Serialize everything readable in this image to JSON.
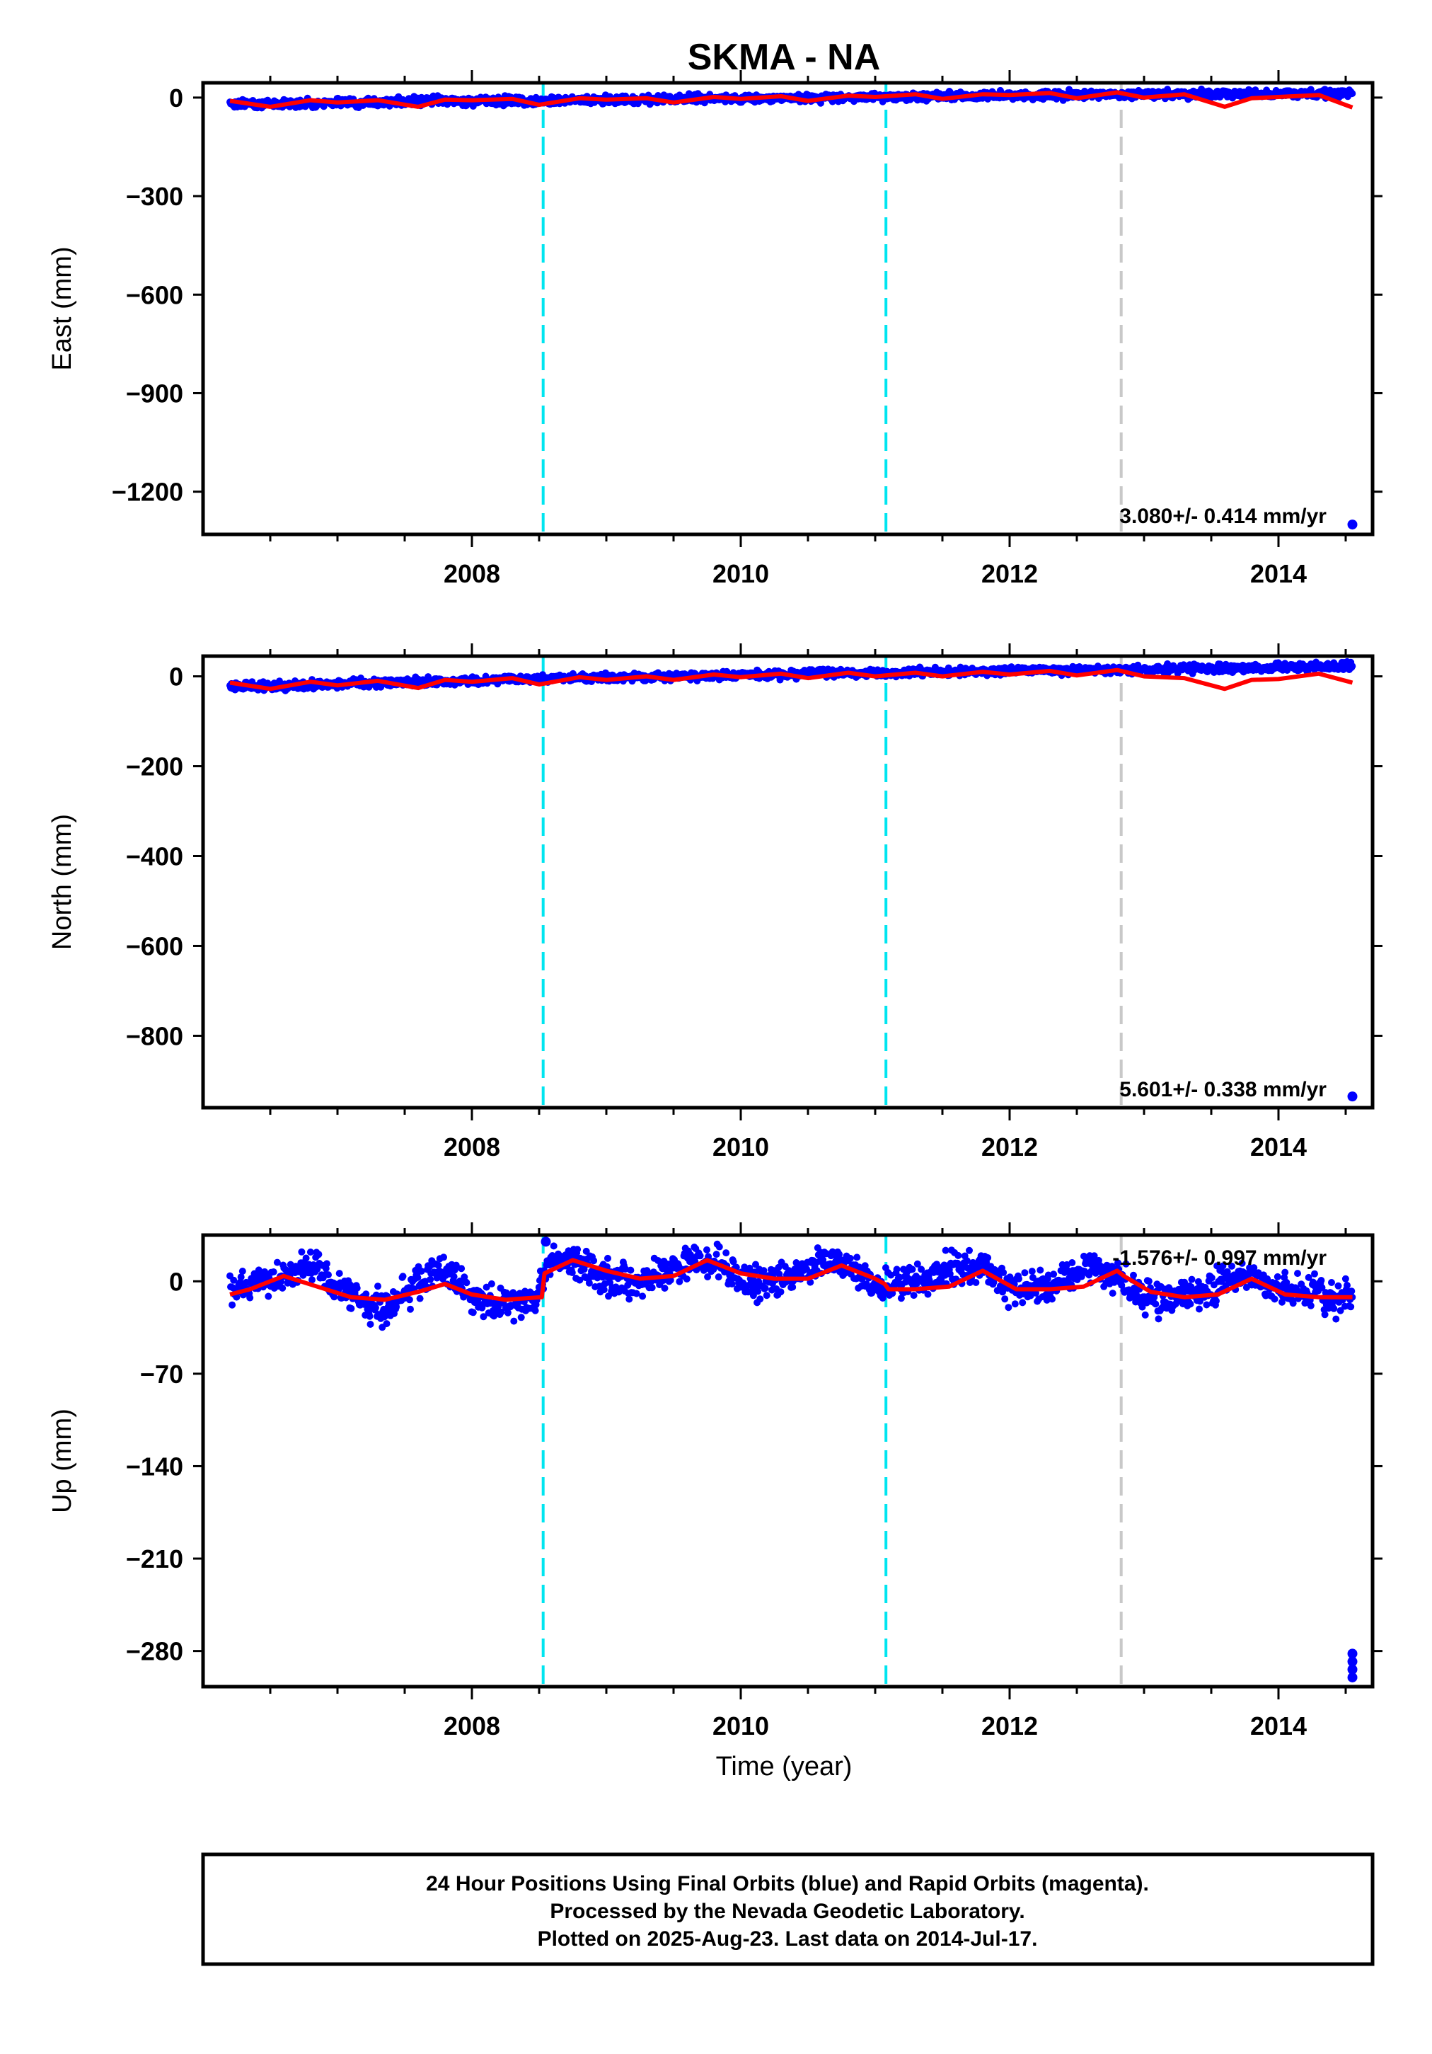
{
  "chart_data": {
    "type": "scatter",
    "title": "SKMA - NA",
    "xlabel": "Time (year)",
    "xlim": [
      2006.0,
      2014.7
    ],
    "x_ticks": [
      2008,
      2010,
      2012,
      2014
    ],
    "x_tick_labels": [
      "2008",
      "2010",
      "2012",
      "2014"
    ],
    "grid": false,
    "step_lines": [
      {
        "x": 2008.53,
        "color": "#00e5f0",
        "style": "dashed"
      },
      {
        "x": 2011.08,
        "color": "#00e5f0",
        "style": "dashed"
      },
      {
        "x": 2012.83,
        "color": "#c8c8c8",
        "style": "dashed"
      }
    ],
    "colors": {
      "observations": "#0000ff",
      "model": "#ff0000"
    },
    "panels": [
      {
        "name": "east",
        "ylabel": "East (mm)",
        "ylim": [
          -1330,
          45
        ],
        "y_ticks": [
          0,
          -300,
          -600,
          -900,
          -1200
        ],
        "y_tick_labels": [
          "0",
          "−300",
          "−600",
          "−900",
          "−1200"
        ],
        "rate_label": "3.080+/- 0.414 mm/yr",
        "series": [
          {
            "name": "daily positions",
            "style": "dots",
            "x": [
              2006.2,
              2006.6,
              2007.0,
              2007.5,
              2008.0,
              2008.5,
              2009.0,
              2009.5,
              2010.0,
              2010.5,
              2011.0,
              2011.5,
              2012.0,
              2012.5,
              2012.8,
              2013.2,
              2013.6,
              2014.0,
              2014.3,
              2014.55
            ],
            "y": [
              -18,
              -18,
              -15,
              -12,
              -10,
              -9,
              -7,
              -5,
              -3,
              0,
              2,
              4,
              6,
              8,
              10,
              10,
              11,
              12,
              13,
              12
            ]
          },
          {
            "name": "outliers",
            "style": "dots",
            "x": [
              2014.55
            ],
            "y": [
              -1300
            ]
          },
          {
            "name": "model",
            "style": "line",
            "x": [
              2006.2,
              2006.5,
              2006.8,
              2007.0,
              2007.3,
              2007.6,
              2007.8,
              2008.0,
              2008.3,
              2008.5,
              2008.8,
              2009.0,
              2009.3,
              2009.5,
              2009.8,
              2010.0,
              2010.3,
              2010.5,
              2010.8,
              2011.0,
              2011.3,
              2011.5,
              2011.8,
              2012.0,
              2012.3,
              2012.5,
              2012.8,
              2013.0,
              2013.3,
              2013.6,
              2013.8,
              2014.0,
              2014.3,
              2014.55
            ],
            "y": [
              -10,
              -28,
              -8,
              -15,
              -8,
              -28,
              -6,
              -8,
              -4,
              -22,
              -2,
              -6,
              -2,
              -15,
              2,
              -4,
              4,
              -10,
              6,
              2,
              10,
              -4,
              10,
              8,
              14,
              -2,
              16,
              0,
              10,
              -28,
              -2,
              2,
              8,
              -30
            ]
          }
        ]
      },
      {
        "name": "north",
        "ylabel": "North (mm)",
        "ylim": [
          -960,
          45
        ],
        "y_ticks": [
          0,
          -200,
          -400,
          -600,
          -800
        ],
        "y_tick_labels": [
          "0",
          "−200",
          "−400",
          "−600",
          "−800"
        ],
        "rate_label": "5.601+/- 0.338 mm/yr",
        "series": [
          {
            "name": "daily positions",
            "style": "dots",
            "x": [
              2006.2,
              2006.6,
              2007.0,
              2007.5,
              2008.0,
              2008.5,
              2009.0,
              2009.5,
              2010.0,
              2010.5,
              2011.0,
              2011.5,
              2012.0,
              2012.5,
              2012.8,
              2013.2,
              2013.6,
              2014.0,
              2014.3,
              2014.55
            ],
            "y": [
              -22,
              -20,
              -17,
              -13,
              -10,
              -6,
              -3,
              0,
              3,
              6,
              8,
              10,
              12,
              14,
              15,
              16,
              18,
              20,
              22,
              24
            ]
          },
          {
            "name": "outliers",
            "style": "dots",
            "x": [
              2014.55
            ],
            "y": [
              -935
            ]
          },
          {
            "name": "model",
            "style": "line",
            "x": [
              2006.2,
              2006.5,
              2006.8,
              2007.0,
              2007.3,
              2007.6,
              2007.8,
              2008.0,
              2008.3,
              2008.5,
              2008.8,
              2009.0,
              2009.3,
              2009.5,
              2009.8,
              2010.0,
              2010.3,
              2010.5,
              2010.8,
              2011.0,
              2011.3,
              2011.5,
              2011.8,
              2012.0,
              2012.3,
              2012.5,
              2012.8,
              2013.0,
              2013.3,
              2013.6,
              2013.8,
              2014.0,
              2014.3,
              2014.55
            ],
            "y": [
              -14,
              -28,
              -12,
              -20,
              -10,
              -26,
              -8,
              -12,
              -4,
              -18,
              -2,
              -8,
              0,
              -8,
              4,
              -2,
              6,
              -4,
              8,
              0,
              8,
              0,
              10,
              4,
              12,
              2,
              14,
              0,
              -4,
              -28,
              -8,
              -6,
              6,
              -14
            ]
          }
        ]
      },
      {
        "name": "up",
        "ylabel": "Up (mm)",
        "ylim": [
          -307,
          35
        ],
        "y_ticks": [
          0,
          -70,
          -140,
          -210,
          -280
        ],
        "y_tick_labels": [
          "0",
          "−70",
          "−140",
          "−210",
          "−280"
        ],
        "rate_label": "-1.576+/- 0.997 mm/yr",
        "series": [
          {
            "name": "daily positions",
            "style": "dots",
            "x": [
              2006.2,
              2006.4,
              2006.6,
              2006.8,
              2007.0,
              2007.2,
              2007.4,
              2007.6,
              2007.8,
              2008.0,
              2008.2,
              2008.45,
              2008.6,
              2008.8,
              2009.0,
              2009.2,
              2009.4,
              2009.6,
              2009.8,
              2010.0,
              2010.2,
              2010.4,
              2010.6,
              2010.8,
              2011.0,
              2011.2,
              2011.4,
              2011.6,
              2011.8,
              2012.0,
              2012.2,
              2012.4,
              2012.6,
              2012.8,
              2013.0,
              2013.2,
              2013.4,
              2013.6,
              2013.8,
              2014.0,
              2014.2,
              2014.4,
              2014.55
            ],
            "y": [
              -8,
              -2,
              2,
              12,
              -4,
              -20,
              -18,
              0,
              10,
              -14,
              -18,
              -14,
              16,
              14,
              2,
              0,
              4,
              14,
              16,
              0,
              -2,
              4,
              14,
              12,
              -4,
              -2,
              2,
              10,
              8,
              -4,
              -4,
              0,
              12,
              4,
              -12,
              -14,
              -10,
              0,
              2,
              -8,
              -10,
              -12,
              -8
            ]
          },
          {
            "name": "outliers",
            "style": "dots",
            "x": [
              2014.55,
              2014.55,
              2014.55,
              2014.55,
              2008.55
            ],
            "y": [
              -282,
              -288,
              -294,
              -300,
              30
            ]
          },
          {
            "name": "model",
            "style": "line",
            "x": [
              2006.2,
              2006.35,
              2006.6,
              2006.85,
              2007.1,
              2007.35,
              2007.6,
              2007.8,
              2008.0,
              2008.25,
              2008.52,
              2008.54,
              2008.75,
              2009.0,
              2009.25,
              2009.5,
              2009.75,
              2010.0,
              2010.25,
              2010.5,
              2010.75,
              2011.0,
              2011.07,
              2011.1,
              2011.3,
              2011.55,
              2011.8,
              2012.05,
              2012.3,
              2012.55,
              2012.8,
              2012.85,
              2013.05,
              2013.3,
              2013.55,
              2013.8,
              2014.05,
              2014.3,
              2014.55
            ],
            "y": [
              -10,
              -6,
              4,
              -4,
              -12,
              -14,
              -8,
              -2,
              -10,
              -14,
              -12,
              6,
              16,
              8,
              2,
              4,
              16,
              6,
              2,
              2,
              12,
              2,
              -2,
              -6,
              -6,
              -4,
              8,
              -6,
              -6,
              -4,
              8,
              4,
              -8,
              -12,
              -10,
              2,
              -10,
              -12,
              -12
            ]
          }
        ]
      }
    ],
    "footer": [
      "24 Hour Positions Using Final Orbits (blue) and Rapid Orbits (magenta).",
      "Processed by the Nevada Geodetic Laboratory.",
      "Plotted on 2025-Aug-23. Last data on 2014-Jul-17."
    ]
  }
}
